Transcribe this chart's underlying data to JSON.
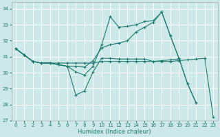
{
  "xlabel": "Humidex (Indice chaleur)",
  "bg_color": "#cce8e8",
  "line_color": "#1e7a6e",
  "grid_color": "#ffffff",
  "xlim": [
    -0.5,
    23.5
  ],
  "ylim": [
    27.0,
    34.4
  ],
  "yticks": [
    27,
    28,
    29,
    30,
    31,
    32,
    33,
    34
  ],
  "xticks": [
    0,
    1,
    2,
    3,
    4,
    5,
    6,
    7,
    8,
    9,
    10,
    11,
    12,
    13,
    14,
    15,
    16,
    17,
    18,
    19,
    20,
    21,
    22,
    23
  ],
  "series": [
    {
      "x": [
        0,
        1,
        2,
        3,
        4,
        5,
        6,
        7,
        8,
        9,
        10,
        11,
        12,
        13,
        14,
        15,
        16,
        17,
        18,
        19,
        20,
        21,
        22,
        23
      ],
      "y": [
        31.5,
        31.1,
        30.7,
        30.6,
        30.6,
        30.5,
        30.4,
        28.6,
        28.85,
        30.05,
        30.9,
        30.9,
        30.85,
        30.85,
        30.85,
        30.85,
        30.7,
        30.7,
        30.7,
        30.75,
        30.8,
        30.85,
        30.9,
        27.2
      ]
    },
    {
      "x": [
        0,
        1,
        2,
        3,
        4,
        5,
        6,
        7,
        8,
        9,
        10,
        11,
        12,
        13,
        14,
        15,
        16,
        17,
        18,
        19,
        20,
        21
      ],
      "y": [
        31.5,
        31.1,
        30.7,
        30.6,
        30.6,
        30.5,
        30.4,
        30.05,
        29.85,
        30.4,
        31.75,
        33.5,
        32.85,
        32.9,
        33.0,
        33.2,
        33.25,
        33.8,
        32.3,
        30.9,
        29.3,
        28.1
      ]
    },
    {
      "x": [
        0,
        1,
        2,
        3,
        4,
        5,
        6,
        7,
        8,
        9,
        10,
        11,
        12,
        13,
        14,
        15,
        16,
        17,
        18,
        19,
        20,
        21
      ],
      "y": [
        31.5,
        31.1,
        30.7,
        30.6,
        30.6,
        30.5,
        30.4,
        30.4,
        30.35,
        30.75,
        31.55,
        31.75,
        31.85,
        32.0,
        32.55,
        32.85,
        33.15,
        33.8,
        32.3,
        30.9,
        29.3,
        28.1
      ]
    },
    {
      "x": [
        0,
        1,
        2,
        3,
        4,
        5,
        6,
        7,
        8,
        9,
        10,
        11,
        12,
        13,
        14,
        15,
        16,
        17,
        18,
        19
      ],
      "y": [
        31.5,
        31.1,
        30.7,
        30.6,
        30.6,
        30.6,
        30.6,
        30.6,
        30.6,
        30.6,
        30.7,
        30.7,
        30.7,
        30.7,
        30.7,
        30.7,
        30.7,
        30.75,
        30.8,
        30.85
      ]
    }
  ]
}
